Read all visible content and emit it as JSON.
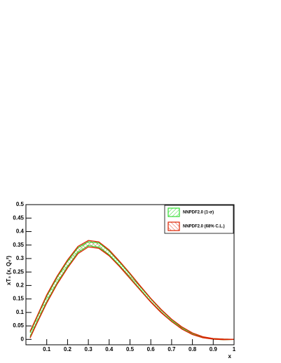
{
  "chart_data": {
    "type": "band",
    "xlabel": "x",
    "ylabel": "xT₃ (x, Q₀²)",
    "x": [
      0.02,
      0.05,
      0.1,
      0.15,
      0.2,
      0.25,
      0.3,
      0.35,
      0.4,
      0.45,
      0.5,
      0.55,
      0.6,
      0.65,
      0.7,
      0.75,
      0.8,
      0.85,
      0.9,
      0.95,
      1
    ],
    "series": [
      {
        "name": "NNPDF2.0 (1-σ)",
        "color": "#33dd33",
        "upper": [
          0.025,
          0.076,
          0.16,
          0.23,
          0.29,
          0.34,
          0.362,
          0.358,
          0.328,
          0.286,
          0.242,
          0.195,
          0.15,
          0.109,
          0.073,
          0.044,
          0.023,
          0.009,
          0.003,
          0.001,
          0
        ],
        "lower": [
          0.01,
          0.06,
          0.14,
          0.21,
          0.27,
          0.323,
          0.348,
          0.342,
          0.314,
          0.274,
          0.229,
          0.185,
          0.14,
          0.101,
          0.068,
          0.04,
          0.019,
          0.007,
          0.001,
          -0.001,
          0
        ]
      },
      {
        "name": "NNPDF2.0 (68% C.L.)",
        "color": "#dd2200",
        "upper": [
          0.03,
          0.08,
          0.165,
          0.235,
          0.295,
          0.345,
          0.367,
          0.362,
          0.332,
          0.29,
          0.245,
          0.198,
          0.152,
          0.111,
          0.075,
          0.046,
          0.024,
          0.01,
          0.003,
          0.001,
          0
        ],
        "lower": [
          0.005,
          0.055,
          0.135,
          0.205,
          0.265,
          0.318,
          0.343,
          0.338,
          0.31,
          0.27,
          0.226,
          0.182,
          0.138,
          0.099,
          0.066,
          0.038,
          0.018,
          0.006,
          0.001,
          -0.001,
          0
        ]
      }
    ],
    "xlim": [
      0,
      1
    ],
    "xticks": [
      0.1,
      0.2,
      0.3,
      0.4,
      0.5,
      0.6,
      0.7,
      0.8,
      0.9,
      1
    ],
    "ylim": [
      -0.02,
      0.5
    ],
    "yticks": [
      0,
      0.05,
      0.1,
      0.15,
      0.2,
      0.25,
      0.3,
      0.35,
      0.4,
      0.45,
      0.5
    ],
    "legend": "top-right"
  }
}
